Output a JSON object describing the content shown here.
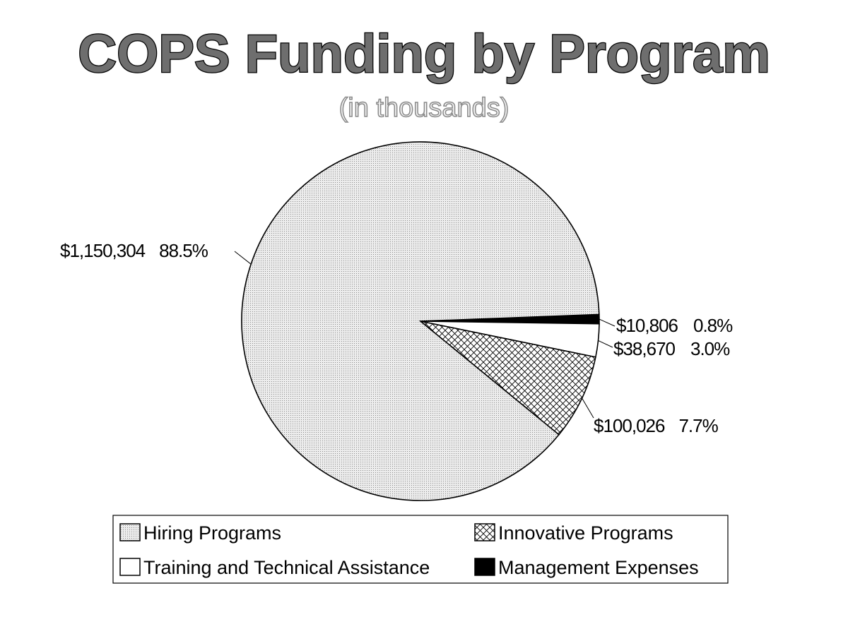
{
  "chart_data": {
    "type": "pie",
    "title": "COPS Funding by Program",
    "subtitle": "(in thousands)",
    "categories": [
      "Hiring Programs",
      "Innovative Programs",
      "Training and Technical Assistance",
      "Management Expenses"
    ],
    "values": [
      1150304,
      100026,
      38670,
      10806
    ],
    "value_labels": [
      "$1,150,304",
      "$100,026",
      "$38,670",
      "$10,806"
    ],
    "percent_labels": [
      "88.5%",
      "7.7%",
      "3.0%",
      "0.8%"
    ],
    "percentages": [
      88.5,
      7.7,
      3.0,
      0.8
    ],
    "legend": {
      "placement": "bottom",
      "entries": [
        "Hiring Programs",
        "Innovative Programs",
        "Training and Technical Assistance",
        "Management Expenses"
      ]
    },
    "fills": [
      "dotted-light-gray",
      "crosshatch",
      "white",
      "black"
    ],
    "colors": {
      "Hiring Programs": "#e6e6e6",
      "Innovative Programs": "#d0d0d0",
      "Training and Technical Assistance": "#ffffff",
      "Management Expenses": "#000000"
    }
  }
}
